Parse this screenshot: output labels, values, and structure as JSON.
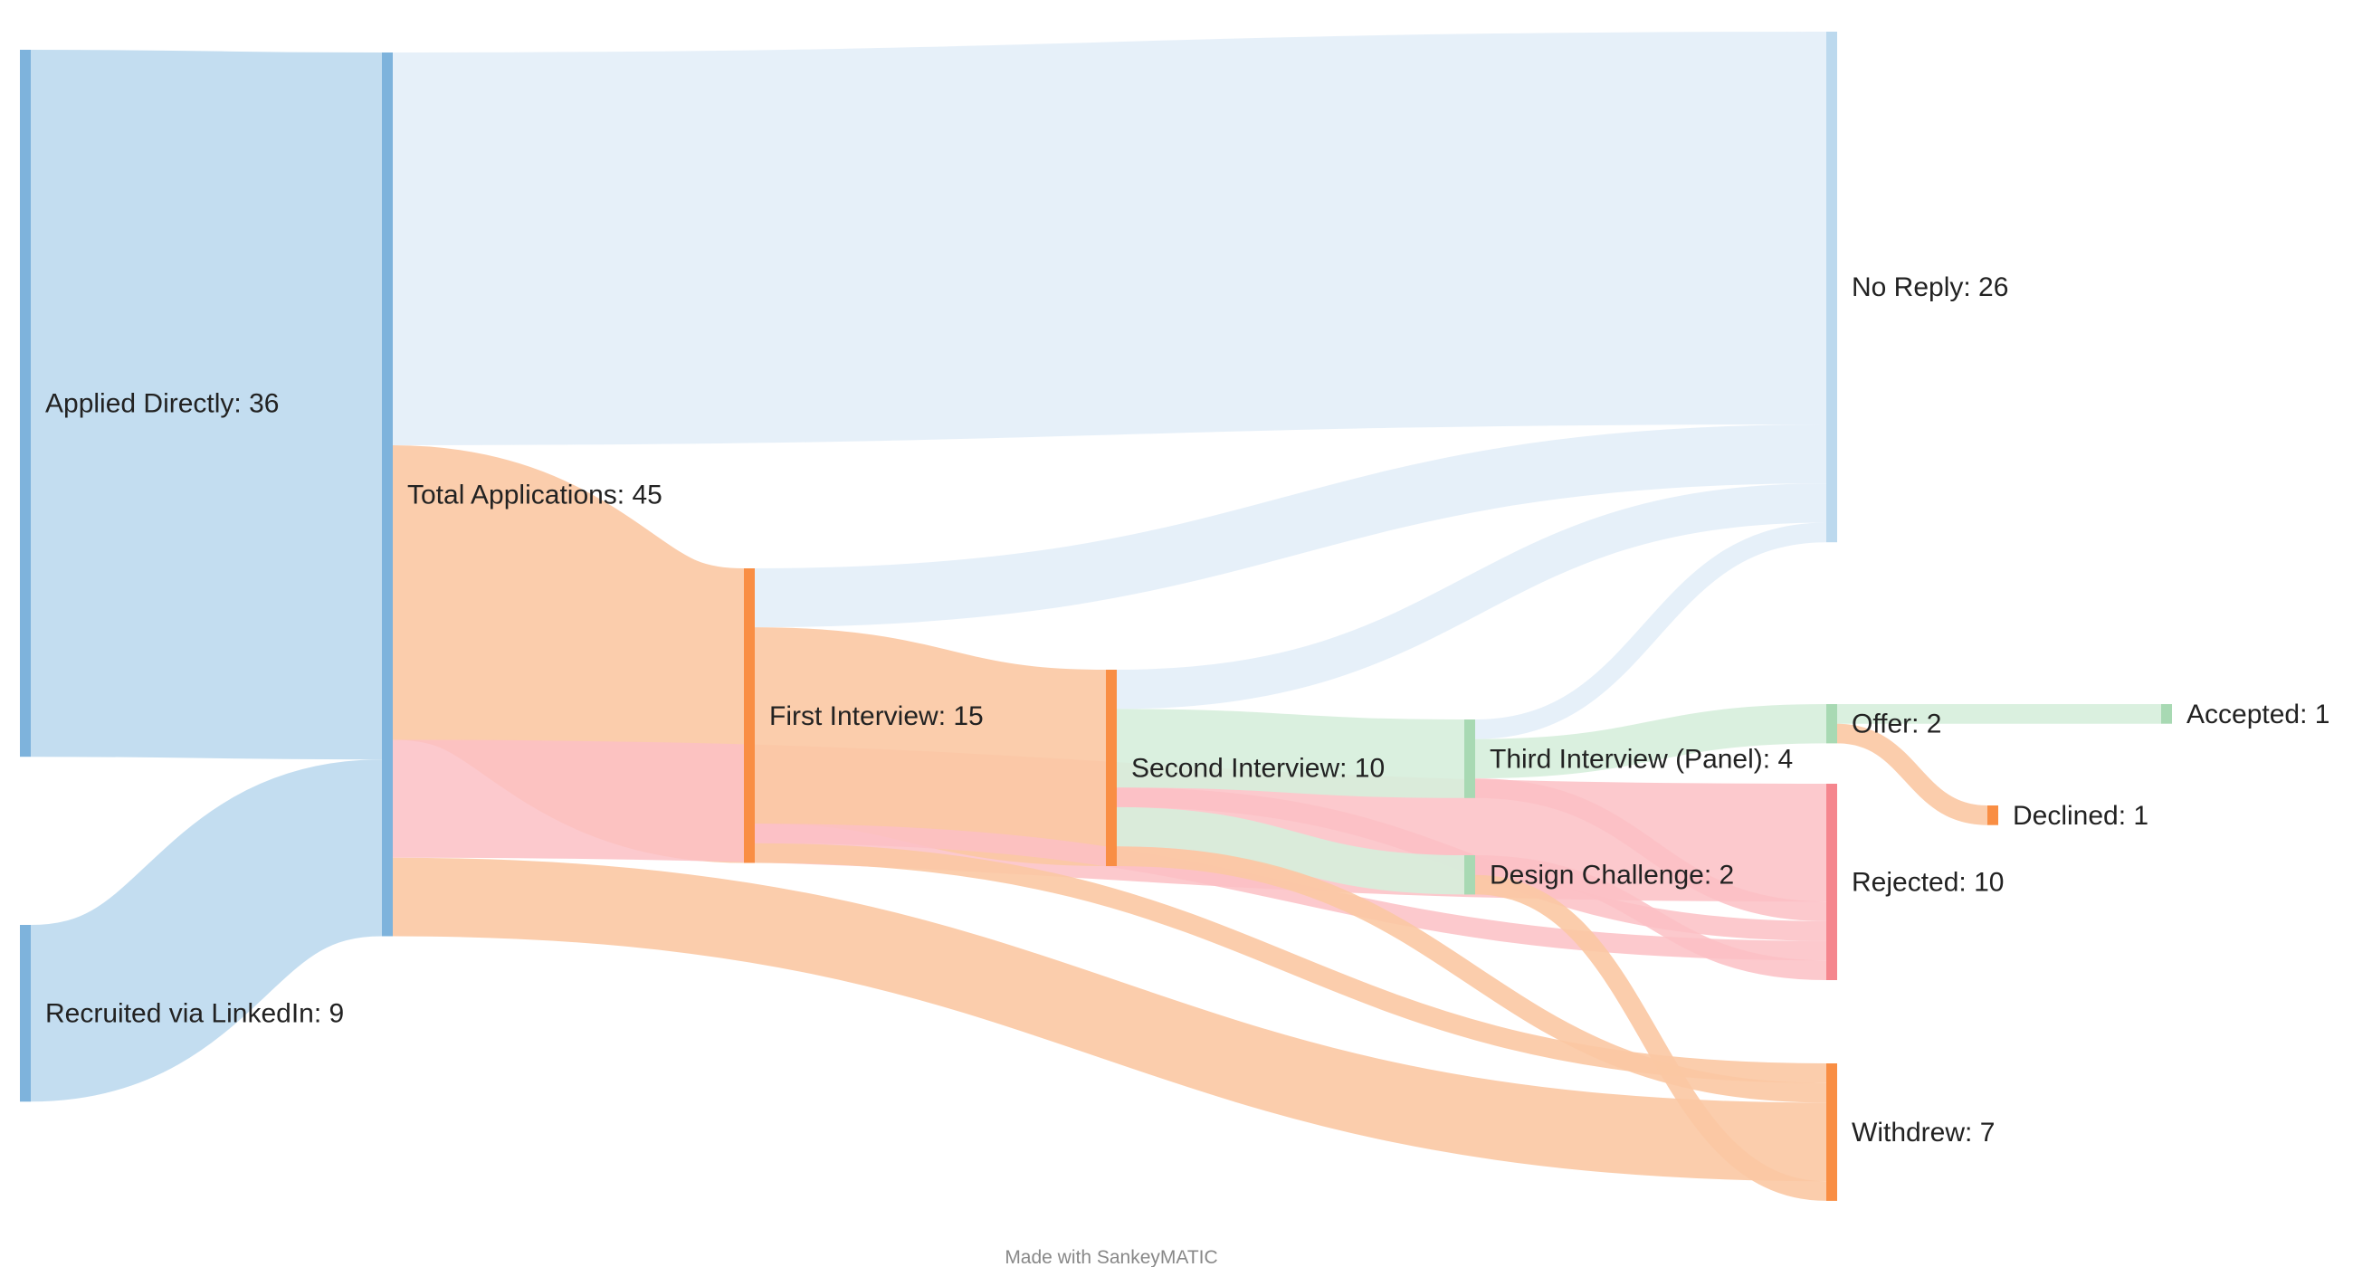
{
  "diagram": {
    "type": "sankey",
    "footer": "Made with SankeyMATIC",
    "colors": {
      "blue_node": "#7eb3dc",
      "blue_flow": "#bcd9ee",
      "blue_light_flow": "#e3eef8",
      "orange_node": "#f98e44",
      "orange_flow": "#fbc8a3",
      "green_node": "#a8d9b3",
      "green_flow": "#d6eedc",
      "red_node": "#f5868e",
      "red_flow": "#fcbfc4"
    }
  },
  "nodes": [
    {
      "id": "applied",
      "label": "Applied Directly: 36",
      "name": "Applied Directly",
      "value": 36,
      "color": "blue"
    },
    {
      "id": "linkedin",
      "label": "Recruited via LinkedIn: 9",
      "name": "Recruited via LinkedIn",
      "value": 9,
      "color": "blue"
    },
    {
      "id": "total",
      "label": "Total Applications: 45",
      "name": "Total Applications",
      "value": 45,
      "color": "blue"
    },
    {
      "id": "first",
      "label": "First Interview: 15",
      "name": "First Interview",
      "value": 15,
      "color": "orange"
    },
    {
      "id": "second",
      "label": "Second Interview: 10",
      "name": "Second Interview",
      "value": 10,
      "color": "orange"
    },
    {
      "id": "third",
      "label": "Third Interview (Panel): 4",
      "name": "Third Interview (Panel)",
      "value": 4,
      "color": "green"
    },
    {
      "id": "design",
      "label": "Design Challenge: 2",
      "name": "Design Challenge",
      "value": 2,
      "color": "green"
    },
    {
      "id": "noreply",
      "label": "No Reply: 26",
      "name": "No Reply",
      "value": 26,
      "color": "blue_light"
    },
    {
      "id": "offer",
      "label": "Offer: 2",
      "name": "Offer",
      "value": 2,
      "color": "green"
    },
    {
      "id": "rejected",
      "label": "Rejected: 10",
      "name": "Rejected",
      "value": 10,
      "color": "red"
    },
    {
      "id": "withdrew",
      "label": "Withdrew: 7",
      "name": "Withdrew",
      "value": 7,
      "color": "orange"
    },
    {
      "id": "accepted",
      "label": "Accepted: 1",
      "name": "Accepted",
      "value": 1,
      "color": "green"
    },
    {
      "id": "declined",
      "label": "Declined: 1",
      "name": "Declined",
      "value": 1,
      "color": "orange"
    }
  ],
  "links": [
    {
      "source": "applied",
      "target": "total",
      "value": 36,
      "color": "blue"
    },
    {
      "source": "linkedin",
      "target": "total",
      "value": 9,
      "color": "blue"
    },
    {
      "source": "total",
      "target": "noreply",
      "value": 20,
      "color": "blue_light"
    },
    {
      "source": "total",
      "target": "first",
      "value": 15,
      "color": "orange"
    },
    {
      "source": "total",
      "target": "rejected",
      "value": 6,
      "color": "red"
    },
    {
      "source": "total",
      "target": "withdrew",
      "value": 4,
      "color": "orange"
    },
    {
      "source": "first",
      "target": "noreply",
      "value": 3,
      "color": "blue_light"
    },
    {
      "source": "first",
      "target": "second",
      "value": 10,
      "color": "orange"
    },
    {
      "source": "first",
      "target": "rejected",
      "value": 1,
      "color": "red"
    },
    {
      "source": "first",
      "target": "withdrew",
      "value": 1,
      "color": "orange"
    },
    {
      "source": "second",
      "target": "noreply",
      "value": 2,
      "color": "blue_light"
    },
    {
      "source": "second",
      "target": "third",
      "value": 4,
      "color": "green"
    },
    {
      "source": "second",
      "target": "rejected",
      "value": 1,
      "color": "red"
    },
    {
      "source": "second",
      "target": "design",
      "value": 2,
      "color": "green"
    },
    {
      "source": "second",
      "target": "withdrew",
      "value": 1,
      "color": "orange"
    },
    {
      "source": "third",
      "target": "noreply",
      "value": 1,
      "color": "blue_light"
    },
    {
      "source": "third",
      "target": "offer",
      "value": 2,
      "color": "green"
    },
    {
      "source": "third",
      "target": "rejected",
      "value": 1,
      "color": "red"
    },
    {
      "source": "design",
      "target": "rejected",
      "value": 1,
      "color": "red"
    },
    {
      "source": "design",
      "target": "withdrew",
      "value": 1,
      "color": "orange"
    },
    {
      "source": "offer",
      "target": "accepted",
      "value": 1,
      "color": "green"
    },
    {
      "source": "offer",
      "target": "declined",
      "value": 1,
      "color": "orange"
    }
  ]
}
